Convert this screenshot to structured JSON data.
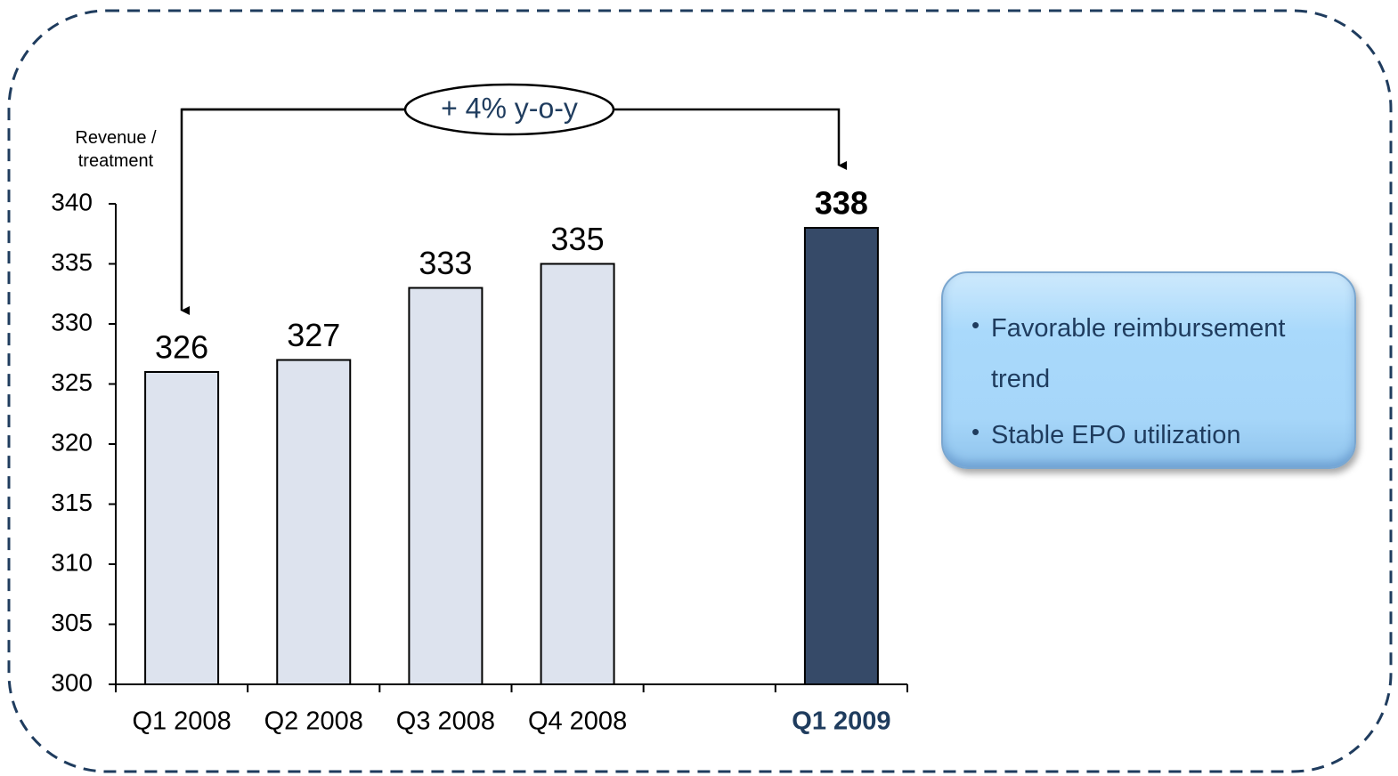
{
  "chart_data": {
    "type": "bar",
    "y_label": "Revenue / treatment",
    "annotation": "+ 4% y-o-y",
    "categories": [
      "Q1 2008",
      "Q2 2008",
      "Q3 2008",
      "Q4 2008",
      null,
      "Q1 2009"
    ],
    "values": [
      326,
      327,
      333,
      335,
      null,
      338
    ],
    "colors": [
      "#dde3ee",
      "#dde3ee",
      "#dde3ee",
      "#dde3ee",
      null,
      "#364a68"
    ],
    "ylim": [
      300,
      340
    ],
    "yticks": [
      300,
      305,
      310,
      315,
      320,
      325,
      330,
      335,
      340
    ],
    "grid": false
  },
  "callout": {
    "bullets": [
      "Favorable reimbursement trend",
      "Stable EPO utilization"
    ]
  }
}
